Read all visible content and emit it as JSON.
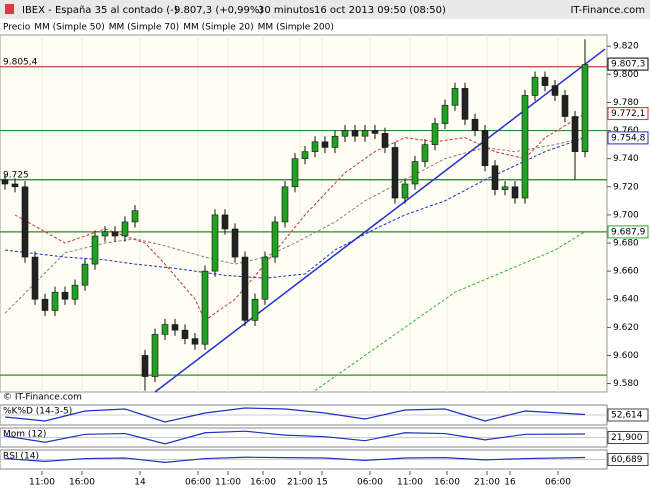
{
  "chart_data": {
    "type": "candlestick",
    "header": {
      "instrument": "IBEX - España 35 al contado (-)",
      "price": "9.807,3 (+0,99%)",
      "interval": "30 minutos",
      "date": "16 oct 2013 09:50 (08:50)",
      "brand": "IT-Finance.com"
    },
    "copyright": "© IT-Finance.com",
    "candles": {
      "name": "Precio",
      "up_color": "#22a022",
      "down_color": "#222222",
      "x": [
        0,
        1,
        2,
        3,
        4,
        5,
        6,
        7,
        8,
        9,
        10,
        11,
        12,
        13,
        14,
        15,
        16,
        17,
        18,
        19,
        20,
        21,
        22,
        23,
        24,
        25,
        26,
        27,
        28,
        29,
        30,
        31,
        32,
        33,
        34,
        35,
        36,
        37,
        38,
        39,
        40,
        41,
        42,
        43,
        44,
        45,
        46,
        47,
        48,
        49,
        50,
        51,
        52,
        53,
        54,
        55,
        56,
        57,
        58
      ],
      "open": [
        9725,
        9722,
        9720,
        9670,
        9640,
        9632,
        9645,
        9640,
        9650,
        9665,
        9685,
        9688,
        9685,
        9695,
        9600,
        9585,
        9615,
        9622,
        9618,
        9612,
        9608,
        9660,
        9700,
        9690,
        9670,
        9625,
        9640,
        9670,
        9695,
        9720,
        9740,
        9745,
        9752,
        9748,
        9756,
        9760,
        9756,
        9760,
        9758,
        9748,
        9712,
        9722,
        9738,
        9750,
        9765,
        9778,
        9790,
        9768,
        9760,
        9735,
        9718,
        9720,
        9712,
        9785,
        9798,
        9792,
        9785,
        9770,
        9745
      ],
      "high": [
        9729,
        9726,
        9724,
        9674,
        9644,
        9649,
        9649,
        9654,
        9669,
        9689,
        9692,
        9692,
        9699,
        9707,
        9604,
        9619,
        9626,
        9626,
        9622,
        9616,
        9664,
        9704,
        9704,
        9694,
        9674,
        9644,
        9674,
        9699,
        9724,
        9744,
        9749,
        9756,
        9756,
        9760,
        9764,
        9764,
        9764,
        9764,
        9762,
        9752,
        9726,
        9742,
        9754,
        9769,
        9782,
        9794,
        9794,
        9772,
        9764,
        9739,
        9724,
        9724,
        9789,
        9802,
        9802,
        9796,
        9789,
        9774,
        9825
      ],
      "low": [
        9718,
        9716,
        9666,
        9636,
        9628,
        9628,
        9636,
        9636,
        9646,
        9661,
        9681,
        9681,
        9681,
        9691,
        9575,
        9581,
        9611,
        9614,
        9608,
        9604,
        9604,
        9656,
        9686,
        9666,
        9621,
        9621,
        9636,
        9666,
        9691,
        9716,
        9736,
        9741,
        9744,
        9744,
        9752,
        9752,
        9752,
        9754,
        9744,
        9708,
        9708,
        9718,
        9734,
        9746,
        9761,
        9774,
        9764,
        9756,
        9731,
        9714,
        9714,
        9708,
        9708,
        9781,
        9788,
        9781,
        9766,
        9725,
        9741
      ],
      "close": [
        9722,
        9720,
        9670,
        9640,
        9632,
        9645,
        9640,
        9650,
        9665,
        9685,
        9688,
        9685,
        9695,
        9703,
        9585,
        9615,
        9622,
        9618,
        9612,
        9608,
        9660,
        9700,
        9690,
        9670,
        9625,
        9640,
        9670,
        9695,
        9720,
        9740,
        9745,
        9752,
        9748,
        9756,
        9760,
        9756,
        9760,
        9758,
        9748,
        9712,
        9722,
        9738,
        9750,
        9765,
        9778,
        9790,
        9768,
        9760,
        9735,
        9718,
        9720,
        9712,
        9785,
        9798,
        9792,
        9785,
        9770,
        9745,
        9807
      ]
    },
    "series": [
      {
        "name": "MM (Simple 50)",
        "color": "#808080",
        "dash": true,
        "x": [
          0,
          6,
          10,
          13,
          16,
          20,
          23,
          26,
          29,
          33,
          36,
          40,
          44,
          48,
          51,
          55,
          58
        ],
        "values": [
          9630,
          9673,
          9680,
          9683,
          9678,
          9670,
          9665,
          9670,
          9680,
          9695,
          9710,
          9725,
          9740,
          9748,
          9745,
          9750,
          9755
        ]
      },
      {
        "name": "MM (Simple 70)",
        "color": "#2030c0",
        "dash": true,
        "x": [
          0,
          6,
          10,
          13,
          17,
          22,
          26,
          30,
          33,
          37,
          40,
          44,
          48,
          51,
          54,
          58
        ],
        "values": [
          9675,
          9670,
          9668,
          9665,
          9662,
          9657,
          9655,
          9658,
          9675,
          9690,
          9700,
          9710,
          9725,
          9735,
          9745,
          9755
        ]
      },
      {
        "name": "MM (Simple 20)",
        "color": "#d03030",
        "dash": true,
        "x": [
          1,
          6,
          10,
          14,
          16,
          19,
          20,
          23,
          26,
          30,
          34,
          37,
          40,
          43,
          46,
          49,
          52,
          54,
          58
        ],
        "values": [
          9700,
          9680,
          9690,
          9680,
          9665,
          9640,
          9625,
          9640,
          9665,
          9700,
          9730,
          9745,
          9755,
          9752,
          9755,
          9745,
          9740,
          9755,
          9772
        ]
      },
      {
        "name": "MM (Simple 200)",
        "color": "#30b030",
        "dash": true,
        "x": [
          31,
          36,
          40,
          45,
          50,
          55,
          58
        ],
        "values": [
          9575,
          9600,
          9620,
          9645,
          9660,
          9675,
          9688
        ]
      }
    ],
    "trendline": {
      "color": "#2030d0",
      "x": [
        15,
        60
      ],
      "values": [
        9574,
        9818
      ]
    },
    "hlines": [
      {
        "value": 9805.4,
        "color": "#c04040",
        "label": "9.805,4"
      },
      {
        "value": 9760,
        "color": "#2e8b2e"
      },
      {
        "value": 9725,
        "color": "#1e7b1e",
        "label": "9.725"
      },
      {
        "value": 9687.9,
        "color": "#2e8b2e"
      },
      {
        "value": 9586,
        "color": "#2e8b2e"
      }
    ],
    "price_boxes": [
      {
        "value": 9807.3,
        "label": "9.807,3",
        "color": "#000000"
      },
      {
        "value": 9772.1,
        "label": "9.772,1",
        "color": "#d03030"
      },
      {
        "value": 9754.8,
        "label": "9.754,8",
        "color": "#2030c0"
      },
      {
        "value": 9687.9,
        "label": "9.687,9",
        "color": "#30a030"
      }
    ],
    "xlim": [
      -0.5,
      60.2
    ],
    "ylim": [
      9574,
      9828
    ],
    "yticks": [
      {
        "value": 9820,
        "label": "9.820"
      },
      {
        "value": 9800,
        "label": "9.800"
      },
      {
        "value": 9780,
        "label": "9.780"
      },
      {
        "value": 9760,
        "label": "9.760"
      },
      {
        "value": 9740,
        "label": "9.740"
      },
      {
        "value": 9720,
        "label": "9.720"
      },
      {
        "value": 9700,
        "label": "9.700"
      },
      {
        "value": 9680,
        "label": "9.680"
      },
      {
        "value": 9660,
        "label": "9.660"
      },
      {
        "value": 9640,
        "label": "9.640"
      },
      {
        "value": 9620,
        "label": "9.620"
      },
      {
        "value": 9600,
        "label": "9.600"
      },
      {
        "value": 9580,
        "label": "9.580"
      }
    ],
    "xticks": [
      {
        "value": 3.7,
        "label": "11:00"
      },
      {
        "value": 7.7,
        "label": "16:00"
      },
      {
        "value": 13.5,
        "label": "14"
      },
      {
        "value": 19.3,
        "label": "06:00"
      },
      {
        "value": 22.3,
        "label": "11:00"
      },
      {
        "value": 25.8,
        "label": "16:00"
      },
      {
        "value": 29.5,
        "label": "21:00"
      },
      {
        "value": 31.7,
        "label": "15"
      },
      {
        "value": 36.5,
        "label": "06:00"
      },
      {
        "value": 40.5,
        "label": "11:00"
      },
      {
        "value": 44.2,
        "label": "16:00"
      },
      {
        "value": 48.2,
        "label": "21:00"
      },
      {
        "value": 50.5,
        "label": "16"
      },
      {
        "value": 55.3,
        "label": "06:00"
      }
    ],
    "indicators": [
      {
        "name": "%K%D (14-3-5)",
        "color": "#2030c0",
        "fill": "#e0b0c8",
        "ylim": [
          0,
          100
        ],
        "x": [
          0,
          4,
          8,
          12,
          16,
          20,
          24,
          28,
          32,
          36,
          40,
          44,
          48,
          52,
          58
        ],
        "values": [
          40,
          20,
          70,
          80,
          15,
          60,
          85,
          80,
          60,
          30,
          75,
          80,
          20,
          70,
          52.614
        ],
        "last": {
          "value": 52.614,
          "label": "52,614"
        }
      },
      {
        "name": "Mom (12)",
        "color": "#2030c0",
        "fill": "#b8d8b0",
        "ylim": [
          -60,
          60
        ],
        "x": [
          0,
          4,
          8,
          12,
          16,
          20,
          24,
          28,
          32,
          36,
          40,
          44,
          48,
          52,
          58
        ],
        "values": [
          10,
          -30,
          20,
          25,
          -40,
          30,
          40,
          15,
          5,
          -20,
          30,
          25,
          -15,
          20,
          21.9
        ],
        "last": {
          "value": 21.9,
          "label": "21,900"
        }
      },
      {
        "name": "RSI (14)",
        "color": "#2030c0",
        "fill": "#c8c8e8",
        "ylim": [
          0,
          100
        ],
        "x": [
          0,
          4,
          8,
          12,
          16,
          20,
          24,
          28,
          32,
          36,
          40,
          44,
          48,
          52,
          58
        ],
        "values": [
          55,
          40,
          55,
          58,
          35,
          55,
          62,
          60,
          58,
          45,
          58,
          60,
          48,
          55,
          60.689
        ],
        "last": {
          "value": 60.689,
          "label": "60,689"
        }
      }
    ]
  }
}
